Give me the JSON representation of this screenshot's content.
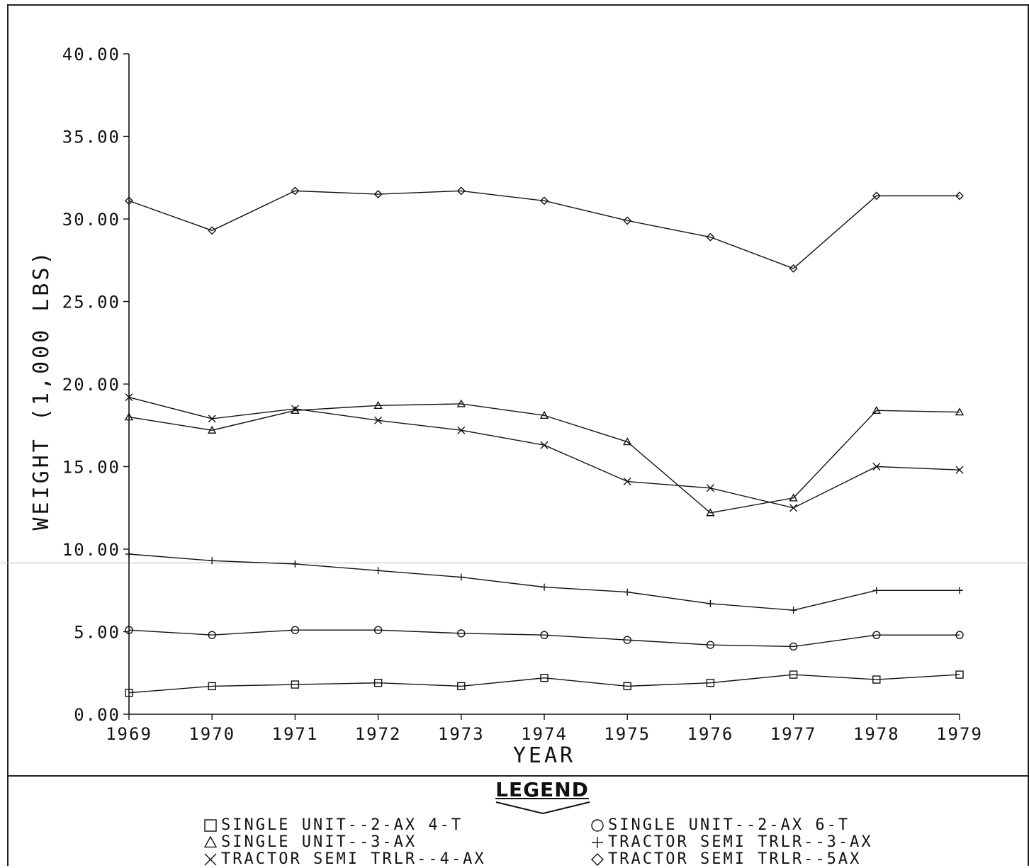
{
  "chart_data": {
    "type": "line",
    "title": "",
    "xlabel": "YEAR",
    "ylabel": "WEIGHT (1,000 LBS)",
    "x": [
      1969,
      1970,
      1971,
      1972,
      1973,
      1974,
      1975,
      1976,
      1977,
      1978,
      1979
    ],
    "xticks": [
      "1969",
      "1970",
      "1971",
      "1972",
      "1973",
      "1974",
      "1975",
      "1976",
      "1977",
      "1978",
      "1979"
    ],
    "yticks": [
      "0.00",
      "5.00",
      "10.00",
      "15.00",
      "20.00",
      "25.00",
      "30.00",
      "35.00",
      "40.00"
    ],
    "ylim": [
      0,
      40
    ],
    "grid": false,
    "legend_position": "bottom",
    "series": [
      {
        "name": "SINGLE UNIT--2-AX 4-T",
        "marker": "square",
        "values": [
          1.3,
          1.7,
          1.8,
          1.9,
          1.7,
          2.2,
          1.7,
          1.9,
          2.4,
          2.1,
          2.4
        ]
      },
      {
        "name": "SINGLE UNIT--2-AX 6-T",
        "marker": "circle",
        "values": [
          5.1,
          4.8,
          5.1,
          5.1,
          4.9,
          4.8,
          4.5,
          4.2,
          4.1,
          4.8,
          4.8
        ]
      },
      {
        "name": "SINGLE UNIT--3-AX",
        "marker": "triangle",
        "values": [
          18.0,
          17.2,
          18.4,
          18.7,
          18.8,
          18.1,
          16.5,
          12.2,
          13.1,
          18.4,
          18.3
        ]
      },
      {
        "name": "TRACTOR SEMI TRLR--3-AX",
        "marker": "plus",
        "values": [
          9.7,
          9.3,
          9.1,
          8.7,
          8.3,
          7.7,
          7.4,
          6.7,
          6.3,
          7.5,
          7.5
        ]
      },
      {
        "name": "TRACTOR SEMI TRLR--4-AX",
        "marker": "x",
        "values": [
          19.2,
          17.9,
          18.5,
          17.8,
          17.2,
          16.3,
          14.1,
          13.7,
          12.5,
          15.0,
          14.8
        ]
      },
      {
        "name": "TRACTOR SEMI TRLR--5AX",
        "marker": "diamond",
        "values": [
          31.1,
          29.3,
          31.7,
          31.5,
          31.7,
          31.1,
          29.9,
          28.9,
          27.0,
          31.4,
          31.4
        ]
      }
    ]
  },
  "legend": {
    "title": "LEGEND",
    "items": [
      {
        "marker": "square",
        "label": "SINGLE UNIT--2-AX 4-T"
      },
      {
        "marker": "circle",
        "label": "SINGLE UNIT--2-AX 6-T"
      },
      {
        "marker": "triangle",
        "label": "SINGLE UNIT--3-AX"
      },
      {
        "marker": "plus",
        "label": "TRACTOR SEMI TRLR--3-AX"
      },
      {
        "marker": "x",
        "label": "TRACTOR SEMI TRLR--4-AX"
      },
      {
        "marker": "diamond",
        "label": "TRACTOR SEMI TRLR--5AX"
      }
    ]
  }
}
